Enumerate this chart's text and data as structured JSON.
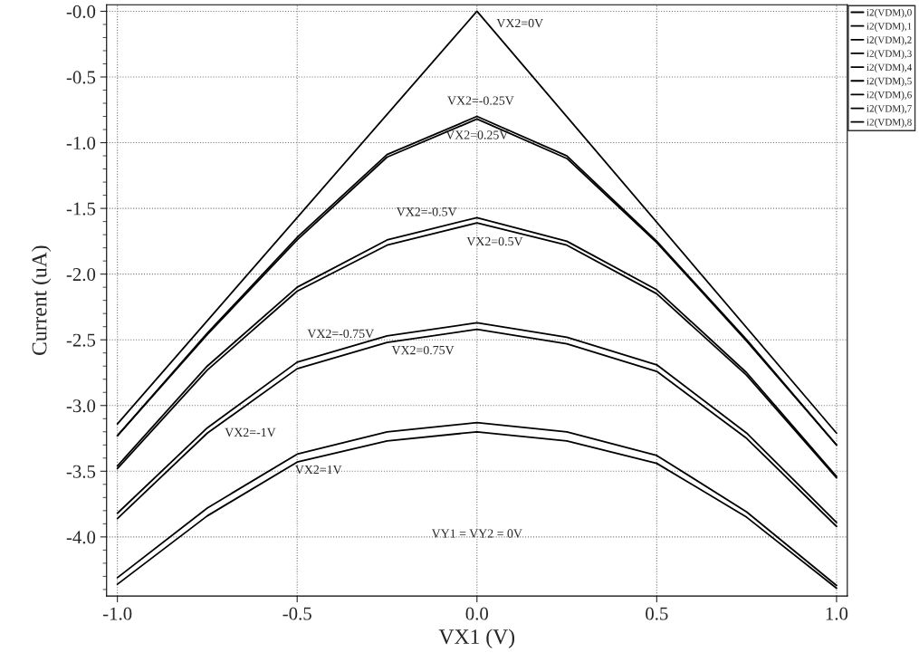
{
  "chart_data": {
    "type": "line",
    "xlabel": "VX1 (V)",
    "ylabel": "Current (uA)",
    "x": [
      -1.0,
      -0.75,
      -0.5,
      -0.25,
      0.0,
      0.25,
      0.5,
      0.75,
      1.0
    ],
    "series": [
      {
        "name": "i2(VDM),0",
        "color": "#000000",
        "values": [
          -4.31,
          -3.78,
          -3.37,
          -3.2,
          -3.13,
          -3.2,
          -3.38,
          -3.81,
          -4.37
        ]
      },
      {
        "name": "i2(VDM),1",
        "color": "#000000",
        "values": [
          -3.82,
          -3.17,
          -2.67,
          -2.47,
          -2.37,
          -2.48,
          -2.69,
          -3.21,
          -3.89
        ]
      },
      {
        "name": "i2(VDM),2",
        "color": "#000000",
        "values": [
          -3.46,
          -2.7,
          -2.1,
          -1.74,
          -1.57,
          -1.75,
          -2.12,
          -2.75,
          -3.54
        ]
      },
      {
        "name": "i2(VDM),3",
        "color": "#000000",
        "values": [
          -3.23,
          -2.45,
          -1.72,
          -1.09,
          -0.8,
          -1.1,
          -1.75,
          -2.5,
          -3.3
        ]
      },
      {
        "name": "i2(VDM),4",
        "color": "#000000",
        "x": [
          -1.0,
          0.0,
          1.0
        ],
        "values": [
          -3.14,
          0.0,
          -3.21
        ]
      },
      {
        "name": "i2(VDM),5",
        "color": "#000000",
        "values": [
          -3.23,
          -2.46,
          -1.74,
          -1.11,
          -0.82,
          -1.12,
          -1.76,
          -2.51,
          -3.3
        ]
      },
      {
        "name": "i2(VDM),6",
        "color": "#000000",
        "values": [
          -3.48,
          -2.73,
          -2.13,
          -1.78,
          -1.61,
          -1.78,
          -2.15,
          -2.77,
          -3.55
        ]
      },
      {
        "name": "i2(VDM),7",
        "color": "#000000",
        "values": [
          -3.86,
          -3.21,
          -2.72,
          -2.52,
          -2.42,
          -2.53,
          -2.74,
          -3.25,
          -3.92
        ]
      },
      {
        "name": "i2(VDM),8",
        "color": "#000000",
        "values": [
          -4.36,
          -3.84,
          -3.43,
          -3.27,
          -3.2,
          -3.27,
          -3.44,
          -3.85,
          -4.39
        ]
      }
    ],
    "xlim": [
      -1.03,
      1.03
    ],
    "ylim": [
      -4.45,
      0.05
    ],
    "xticks": [
      {
        "value": -1,
        "label": "-1.0"
      },
      -0.5,
      {
        "value": 0,
        "label": "0.0"
      },
      0.5,
      {
        "value": 1,
        "label": "1.0"
      }
    ],
    "yticks": [
      {
        "value": 0,
        "label": "-0.0"
      },
      -0.5,
      {
        "value": -1,
        "label": "-1.0"
      },
      -1.5,
      {
        "value": -2,
        "label": "-2.0"
      },
      -2.5,
      {
        "value": -3,
        "label": "-3.0"
      },
      -3.5,
      {
        "value": -4,
        "label": "-4.0"
      }
    ],
    "grid": true,
    "legend": "right",
    "marker": "none",
    "line_style": "solid",
    "annotations": [
      "VX2=0V",
      "VX2=-0.25V",
      "VX2=0.25V",
      "VX2=-0.5V",
      "VX2=0.5V",
      "VX2=-0.75V",
      "VX2=0.75V",
      "VX2=-1V",
      "VX2=1V",
      "VY1 = VY2 = 0V"
    ]
  }
}
